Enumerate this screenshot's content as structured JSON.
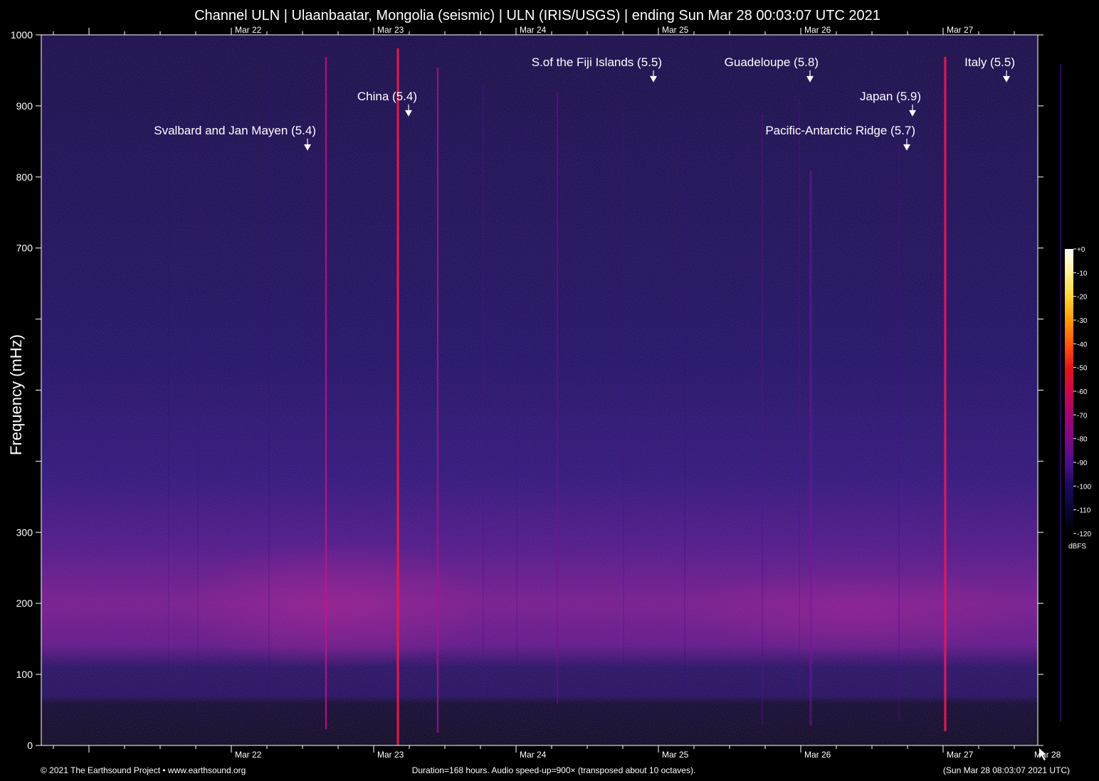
{
  "chart_data": {
    "type": "heatmap",
    "title": "Channel ULN | Ulaanbaatar, Mongolia (seismic) | ULN (IRIS/USGS) | ending Sun Mar 28 00:03:07 UTC 2021",
    "ylabel": "Frequency (mHz)",
    "ylim": [
      0,
      1000
    ],
    "y_ticks": [
      0,
      100,
      200,
      300,
      400,
      500,
      600,
      700,
      800,
      900,
      1000
    ],
    "y_tick_labels": [
      "0",
      "100",
      "200",
      "300",
      "",
      "",
      "",
      "700",
      "800",
      "900",
      "1000"
    ],
    "x_range_days": [
      -6.335,
      0.665
    ],
    "date_ticks": [
      {
        "label": "Mar 22",
        "day": -5
      },
      {
        "label": "Mar 23",
        "day": -4
      },
      {
        "label": "Mar 24",
        "day": -3
      },
      {
        "label": "Mar 25",
        "day": -2
      },
      {
        "label": "Mar 26",
        "day": -1
      },
      {
        "label": "Mar 27",
        "day": 0
      }
    ],
    "bottom_extra_tick": {
      "label": "Mar 28",
      "day": 1
    },
    "events": [
      {
        "label": "Svalbard and Jan Mayen (5.4)",
        "day": -4.465,
        "freq": 840
      },
      {
        "label": "China (5.4)",
        "day": -3.755,
        "freq": 888
      },
      {
        "label": "S.of the Fiji Islands (5.5)",
        "day": -2.035,
        "freq": 936
      },
      {
        "label": "Guadeloupe (5.8)",
        "day": -0.935,
        "freq": 936
      },
      {
        "label": "Japan (5.9)",
        "day": -0.215,
        "freq": 888
      },
      {
        "label": "Pacific-Antarctic Ridge (5.7)",
        "day": -0.255,
        "freq": 840
      },
      {
        "label": "Italy (5.5)",
        "day": 0.445,
        "freq": 936
      }
    ],
    "colorbar": {
      "unit": "dBFS",
      "ticks": [
        "+0",
        "-10",
        "-20",
        "-30",
        "-40",
        "-50",
        "-60",
        "-70",
        "-80",
        "-90",
        "-100",
        "-110",
        "-120"
      ],
      "colors": [
        "#ffffff",
        "#fff2a0",
        "#ffd23a",
        "#ff9a10",
        "#ff5a10",
        "#e8101a",
        "#c80b4a",
        "#a0066e",
        "#7a0a86",
        "#4d0f8a",
        "#1c0a60",
        "#0a0630",
        "#000000"
      ]
    }
  },
  "footer": {
    "left": "© 2021 The Earthsound Project • www.earthsound.org",
    "center": "Duration=168 hours. Audio speed-up=900× (transposed about 10 octaves).",
    "right": "(Sun Mar 28 08:03:07 2021 UTC)"
  }
}
